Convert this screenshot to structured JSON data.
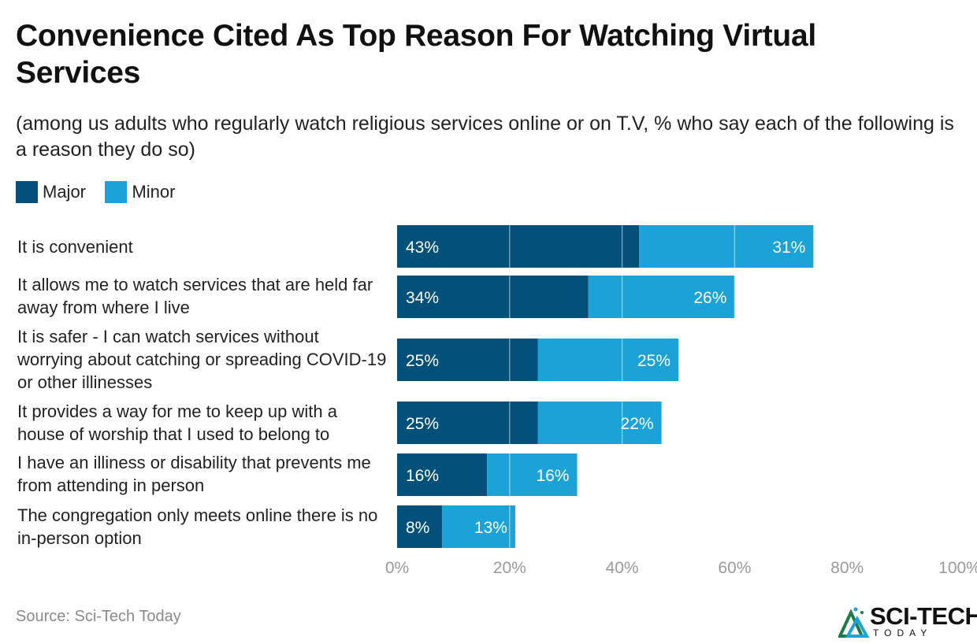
{
  "title": "Convenience Cited As Top Reason For Watching Virtual Services",
  "subtitle": "(among us adults who regularly watch religious services online or on T.V, % who say each of the following is a reason they do so)",
  "legend": [
    {
      "label": "Major",
      "color": "#03517a"
    },
    {
      "label": "Minor",
      "color": "#1ba2d6"
    }
  ],
  "rows": [
    {
      "label": "It is convenient"
    },
    {
      "label": "It allows me to watch services that are held far away from where I live"
    },
    {
      "label": "It is safer - I can watch services without worrying about catching or spreading COVID-19 or other illinesses"
    },
    {
      "label": "It provides a way for me to keep up with a house of worship that I used to belong to"
    },
    {
      "label": "I have an illiness or disability that prevents me from attending in person"
    },
    {
      "label": "The congregation only meets online there is no in-person option"
    }
  ],
  "chart_data": {
    "type": "bar",
    "orientation": "horizontal",
    "stacked": true,
    "categories": [
      "It is convenient",
      "It allows me to watch services that are held far away from where I live",
      "It is safer - I can watch services without worrying about catching or spreading COVID-19 or other illinesses",
      "It provides a way for me to keep up with a house of worship that I used to belong to",
      "I have an illiness or disability that prevents me from attending in person",
      "The congregation only meets online there is no in-person option"
    ],
    "series": [
      {
        "name": "Major",
        "color": "#03517a",
        "values": [
          43,
          34,
          25,
          25,
          16,
          8
        ]
      },
      {
        "name": "Minor",
        "color": "#1ba2d6",
        "values": [
          31,
          26,
          25,
          22,
          16,
          13
        ]
      }
    ],
    "data_labels": {
      "Major": [
        "43%",
        "34%",
        "25%",
        "25%",
        "16%",
        "8%"
      ],
      "Minor": [
        "31%",
        "26%",
        "25%",
        "22%",
        "16%",
        "13%"
      ]
    },
    "xlim": [
      0,
      100
    ],
    "xticks": [
      "0%",
      "20%",
      "40%",
      "60%",
      "80%",
      "100%"
    ],
    "xlabel": "",
    "ylabel": "",
    "grid": true,
    "legend_position": "top-left"
  },
  "source": "Source: Sci-Tech Today",
  "logo": {
    "name": "SCI-TECH",
    "tagline": "TODAY"
  }
}
